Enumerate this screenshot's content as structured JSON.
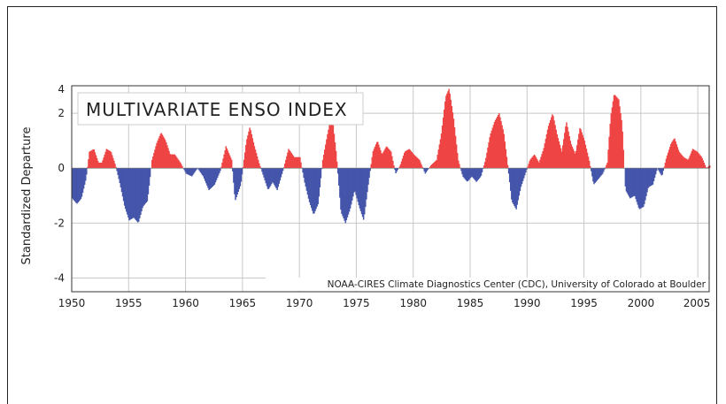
{
  "chart_data": {
    "type": "bar",
    "title": "MULTIVARIATE ENSO INDEX",
    "ylabel": "Standardized Departure",
    "xlabel": "",
    "credit": "NOAA-CIRES Climate Diagnostics Center (CDC), University of Colorado at Boulder",
    "xlim": [
      1950,
      2006
    ],
    "ylim": [
      -4.5,
      3.0
    ],
    "yticks": [
      -4,
      -2,
      0,
      2,
      4
    ],
    "ytick_labels": [
      "-4",
      "-2",
      "0",
      "2",
      "4"
    ],
    "xticks": [
      1950,
      1955,
      1960,
      1965,
      1970,
      1975,
      1980,
      1985,
      1990,
      1995,
      2000,
      2005
    ],
    "xtick_labels": [
      "1950",
      "1955",
      "1960",
      "1965",
      "1970",
      "1975",
      "1980",
      "1985",
      "1990",
      "1995",
      "2000",
      "2005"
    ],
    "grid": true,
    "colors": {
      "positive": "#ee4444",
      "negative": "#4455aa"
    },
    "keypoints": [
      [
        1950.0,
        -1.1
      ],
      [
        1950.4,
        -1.3
      ],
      [
        1950.8,
        -1.1
      ],
      [
        1951.2,
        -0.4
      ],
      [
        1951.5,
        0.6
      ],
      [
        1951.9,
        0.7
      ],
      [
        1952.3,
        0.2
      ],
      [
        1952.6,
        0.2
      ],
      [
        1953.0,
        0.7
      ],
      [
        1953.4,
        0.6
      ],
      [
        1953.8,
        0.1
      ],
      [
        1954.2,
        -0.6
      ],
      [
        1954.6,
        -1.4
      ],
      [
        1955.0,
        -1.9
      ],
      [
        1955.4,
        -1.8
      ],
      [
        1955.8,
        -2.0
      ],
      [
        1956.2,
        -1.4
      ],
      [
        1956.6,
        -1.2
      ],
      [
        1957.0,
        0.3
      ],
      [
        1957.4,
        0.9
      ],
      [
        1957.8,
        1.3
      ],
      [
        1958.2,
        1.0
      ],
      [
        1958.6,
        0.5
      ],
      [
        1959.0,
        0.5
      ],
      [
        1959.5,
        0.2
      ],
      [
        1960.0,
        -0.2
      ],
      [
        1960.5,
        -0.3
      ],
      [
        1961.0,
        0.0
      ],
      [
        1961.5,
        -0.3
      ],
      [
        1962.0,
        -0.8
      ],
      [
        1962.5,
        -0.6
      ],
      [
        1963.0,
        -0.1
      ],
      [
        1963.5,
        0.8
      ],
      [
        1964.0,
        0.3
      ],
      [
        1964.3,
        -1.2
      ],
      [
        1964.8,
        -0.6
      ],
      [
        1965.3,
        1.0
      ],
      [
        1965.6,
        1.5
      ],
      [
        1966.0,
        0.8
      ],
      [
        1966.4,
        0.2
      ],
      [
        1966.8,
        -0.3
      ],
      [
        1967.2,
        -0.8
      ],
      [
        1967.6,
        -0.5
      ],
      [
        1968.0,
        -0.8
      ],
      [
        1968.5,
        -0.1
      ],
      [
        1969.0,
        0.7
      ],
      [
        1969.5,
        0.4
      ],
      [
        1970.0,
        0.4
      ],
      [
        1970.4,
        -0.5
      ],
      [
        1970.8,
        -1.2
      ],
      [
        1971.2,
        -1.7
      ],
      [
        1971.6,
        -1.3
      ],
      [
        1972.0,
        0.3
      ],
      [
        1972.4,
        1.2
      ],
      [
        1972.8,
        2.0
      ],
      [
        1973.2,
        0.5
      ],
      [
        1973.6,
        -1.6
      ],
      [
        1974.0,
        -2.0
      ],
      [
        1974.4,
        -1.5
      ],
      [
        1974.8,
        -0.8
      ],
      [
        1975.2,
        -1.4
      ],
      [
        1975.6,
        -1.9
      ],
      [
        1976.0,
        -0.6
      ],
      [
        1976.4,
        0.6
      ],
      [
        1976.8,
        1.0
      ],
      [
        1977.2,
        0.5
      ],
      [
        1977.6,
        0.8
      ],
      [
        1978.0,
        0.6
      ],
      [
        1978.4,
        -0.2
      ],
      [
        1978.8,
        0.1
      ],
      [
        1979.2,
        0.6
      ],
      [
        1979.6,
        0.7
      ],
      [
        1980.0,
        0.5
      ],
      [
        1980.5,
        0.3
      ],
      [
        1981.0,
        -0.2
      ],
      [
        1981.5,
        0.1
      ],
      [
        1982.0,
        0.3
      ],
      [
        1982.4,
        1.2
      ],
      [
        1982.8,
        2.6
      ],
      [
        1983.1,
        2.9
      ],
      [
        1983.5,
        1.8
      ],
      [
        1983.9,
        0.3
      ],
      [
        1984.3,
        -0.3
      ],
      [
        1984.7,
        -0.5
      ],
      [
        1985.1,
        -0.3
      ],
      [
        1985.5,
        -0.5
      ],
      [
        1985.9,
        -0.3
      ],
      [
        1986.3,
        0.3
      ],
      [
        1986.7,
        1.2
      ],
      [
        1987.1,
        1.7
      ],
      [
        1987.5,
        2.0
      ],
      [
        1987.9,
        1.3
      ],
      [
        1988.2,
        0.3
      ],
      [
        1988.6,
        -1.2
      ],
      [
        1989.0,
        -1.5
      ],
      [
        1989.4,
        -0.7
      ],
      [
        1989.8,
        -0.2
      ],
      [
        1990.2,
        0.3
      ],
      [
        1990.6,
        0.5
      ],
      [
        1991.0,
        0.2
      ],
      [
        1991.4,
        0.7
      ],
      [
        1991.8,
        1.5
      ],
      [
        1992.2,
        2.0
      ],
      [
        1992.6,
        1.2
      ],
      [
        1993.0,
        0.6
      ],
      [
        1993.4,
        1.7
      ],
      [
        1993.8,
        0.9
      ],
      [
        1994.2,
        0.5
      ],
      [
        1994.6,
        1.5
      ],
      [
        1995.0,
        1.0
      ],
      [
        1995.4,
        0.3
      ],
      [
        1995.8,
        -0.6
      ],
      [
        1996.2,
        -0.4
      ],
      [
        1996.6,
        -0.2
      ],
      [
        1997.0,
        0.2
      ],
      [
        1997.3,
        1.9
      ],
      [
        1997.6,
        2.7
      ],
      [
        1998.0,
        2.5
      ],
      [
        1998.3,
        1.6
      ],
      [
        1998.6,
        -0.8
      ],
      [
        1999.0,
        -1.1
      ],
      [
        1999.4,
        -1.0
      ],
      [
        1999.8,
        -1.5
      ],
      [
        2000.2,
        -1.4
      ],
      [
        2000.6,
        -0.7
      ],
      [
        2001.0,
        -0.6
      ],
      [
        2001.4,
        0.0
      ],
      [
        2001.8,
        -0.3
      ],
      [
        2002.2,
        0.4
      ],
      [
        2002.6,
        0.9
      ],
      [
        2002.9,
        1.1
      ],
      [
        2003.3,
        0.6
      ],
      [
        2003.7,
        0.4
      ],
      [
        2004.1,
        0.3
      ],
      [
        2004.5,
        0.7
      ],
      [
        2004.9,
        0.6
      ],
      [
        2005.3,
        0.4
      ],
      [
        2005.7,
        0.0
      ],
      [
        2006.0,
        0.1
      ]
    ]
  }
}
